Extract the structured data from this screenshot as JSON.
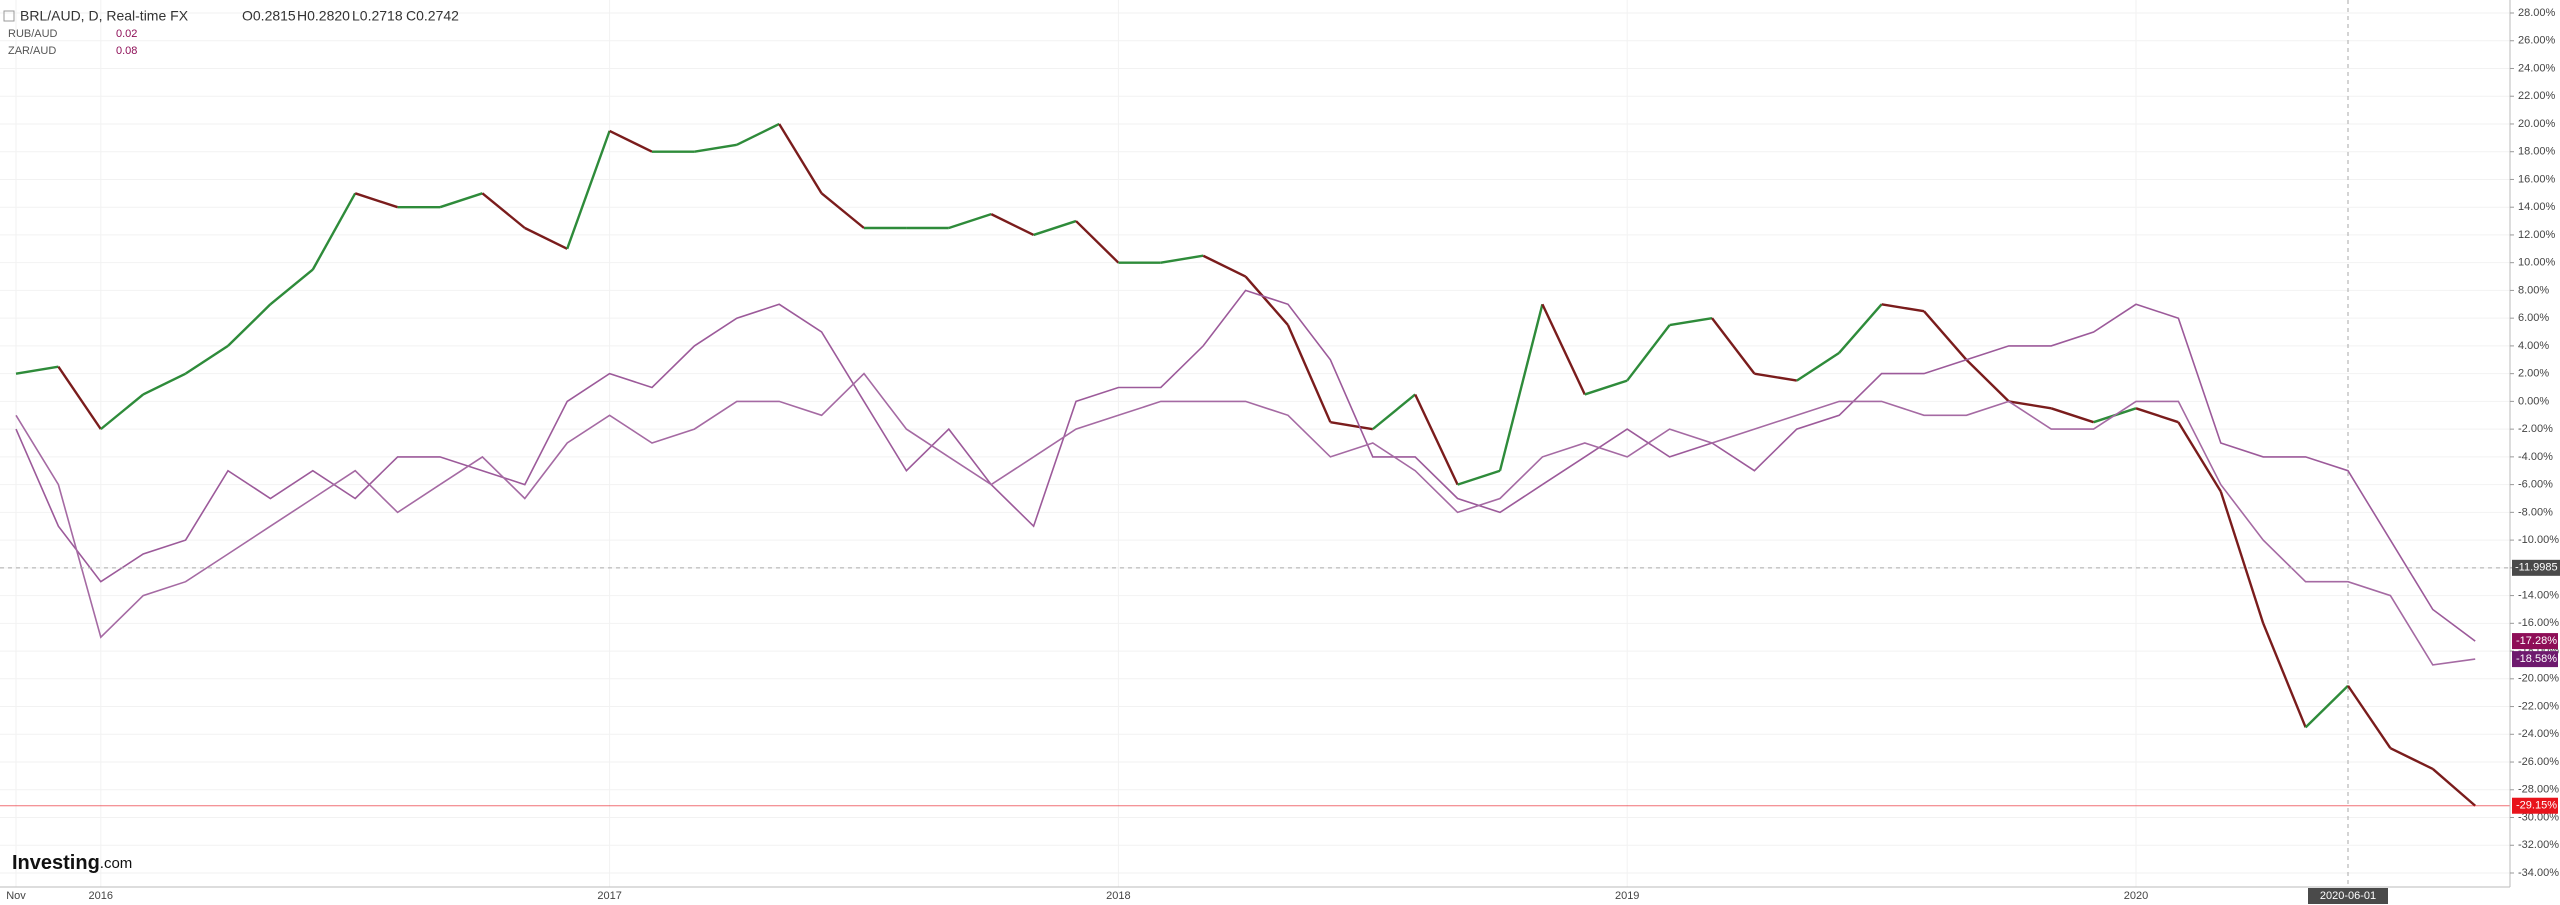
{
  "chart_data": {
    "type": "line",
    "header": {
      "main": "BRL/AUD, D, Real-time FX",
      "ohlc": [
        "O0.2815",
        "H0.2820",
        "L0.2718",
        "C0.2742"
      ],
      "legend": [
        {
          "name": "RUB/AUD",
          "value": "0.02"
        },
        {
          "name": "ZAR/AUD",
          "value": "0.08"
        }
      ]
    },
    "logo": {
      "main": "Investing",
      "suffix": ".com"
    },
    "categories": [
      "Nov",
      null,
      "2016",
      null,
      null,
      null,
      null,
      null,
      null,
      null,
      null,
      null,
      null,
      null,
      "2017",
      null,
      null,
      null,
      null,
      null,
      null,
      null,
      null,
      null,
      null,
      null,
      "2018",
      null,
      null,
      null,
      null,
      null,
      null,
      null,
      null,
      null,
      null,
      null,
      "2019",
      null,
      null,
      null,
      null,
      null,
      null,
      null,
      null,
      null,
      null,
      null,
      "2020",
      null,
      null,
      null,
      null,
      "2020-06-01",
      null,
      null,
      null
    ],
    "series": [
      {
        "name": "BRL/AUD",
        "up_color": "#2e8b3a",
        "down_color": "#7a1c1c",
        "label_color": "#e8131b",
        "last_label": "-29.15%",
        "values": [
          2,
          2.5,
          -2,
          0.5,
          2,
          4,
          7,
          9.5,
          15,
          14,
          14,
          15,
          12.5,
          11,
          19.5,
          18,
          18,
          18.5,
          20,
          15,
          12.5,
          12.5,
          12.5,
          13.5,
          12,
          13,
          10,
          10,
          10.5,
          9,
          5.5,
          -1.5,
          -2,
          0.5,
          -6,
          -5,
          7,
          0.5,
          1.5,
          5.5,
          6,
          2,
          1.5,
          3.5,
          7,
          6.5,
          3,
          0,
          -0.5,
          -1.5,
          -0.5,
          -1.5,
          -6.5,
          -16,
          -23.5,
          -20.5,
          -25,
          -26.5,
          -29.15
        ]
      },
      {
        "name": "RUB/AUD",
        "color": "#9c5a9a",
        "label_color": "#8e0e57",
        "last_label": "-17.28%",
        "values": [
          -2,
          -9,
          -13,
          -11,
          -10,
          -5,
          -7,
          -5,
          -7,
          -4,
          -4,
          -5,
          -6,
          0,
          2,
          1,
          4,
          6,
          7,
          5,
          0,
          -5,
          -2,
          -6,
          -9,
          0,
          1,
          1,
          4,
          8,
          7,
          3,
          -4,
          -4,
          -7,
          -8,
          -6,
          -4,
          -2,
          -4,
          -3,
          -5,
          -2,
          -1,
          2,
          2,
          3,
          4,
          4,
          5,
          7,
          6,
          -3,
          -4,
          -4,
          -5,
          -10,
          -15,
          -17.28
        ]
      },
      {
        "name": "ZAR/AUD",
        "color": "#a56aa3",
        "label_color": "#6e1a6e",
        "last_label": "-18.58%",
        "values": [
          -1,
          -6,
          -17,
          -14,
          -13,
          -11,
          -9,
          -7,
          -5,
          -8,
          -6,
          -4,
          -7,
          -3,
          -1,
          -3,
          -2,
          0,
          0,
          -1,
          2,
          -2,
          -4,
          -6,
          -4,
          -2,
          -1,
          0,
          0,
          0,
          -1,
          -4,
          -3,
          -5,
          -8,
          -7,
          -4,
          -3,
          -4,
          -2,
          -3,
          -2,
          -1,
          0,
          0,
          -1,
          -1,
          0,
          -2,
          -2,
          0,
          0,
          -6,
          -10,
          -13,
          -13,
          -14,
          -19,
          -18.58
        ]
      }
    ],
    "crosshair": -11.9985,
    "ylim": [
      -34,
      28
    ],
    "yticks": [
      {
        "value": 28,
        "label": "28.00%"
      },
      {
        "value": 26,
        "label": "26.00%"
      },
      {
        "value": 24,
        "label": "24.00%"
      },
      {
        "value": 22,
        "label": "22.00%"
      },
      {
        "value": 20,
        "label": "20.00%"
      },
      {
        "value": 18,
        "label": "18.00%"
      },
      {
        "value": 16,
        "label": "16.00%"
      },
      {
        "value": 14,
        "label": "14.00%"
      },
      {
        "value": 12,
        "label": "12.00%"
      },
      {
        "value": 10,
        "label": "10.00%"
      },
      {
        "value": 8,
        "label": "8.00%"
      },
      {
        "value": 6,
        "label": "6.00%"
      },
      {
        "value": 4,
        "label": "4.00%"
      },
      {
        "value": 2,
        "label": "2.00%"
      },
      {
        "value": 0,
        "label": "0.00%"
      },
      {
        "value": -2,
        "label": "-2.00%"
      },
      {
        "value": -4,
        "label": "-4.00%"
      },
      {
        "value": -6,
        "label": "-6.00%"
      },
      {
        "value": -8,
        "label": "-8.00%"
      },
      {
        "value": -10,
        "label": "-10.00%"
      },
      {
        "value": -12,
        "label": "-12.00%"
      },
      {
        "value": -14,
        "label": "-14.00%"
      },
      {
        "value": -16,
        "label": "-16.00%"
      },
      {
        "value": -18,
        "label": "-18.00%"
      },
      {
        "value": -20,
        "label": "-20.00%"
      },
      {
        "value": -22,
        "label": "-22.00%"
      },
      {
        "value": -24,
        "label": "-24.00%"
      },
      {
        "value": -26,
        "label": "-26.00%"
      },
      {
        "value": -28,
        "label": "-28.00%"
      },
      {
        "value": -30,
        "label": "-30.00%"
      },
      {
        "value": -32,
        "label": "-32.00%"
      },
      {
        "value": -34,
        "label": "-34.00%"
      }
    ],
    "grid": true
  }
}
